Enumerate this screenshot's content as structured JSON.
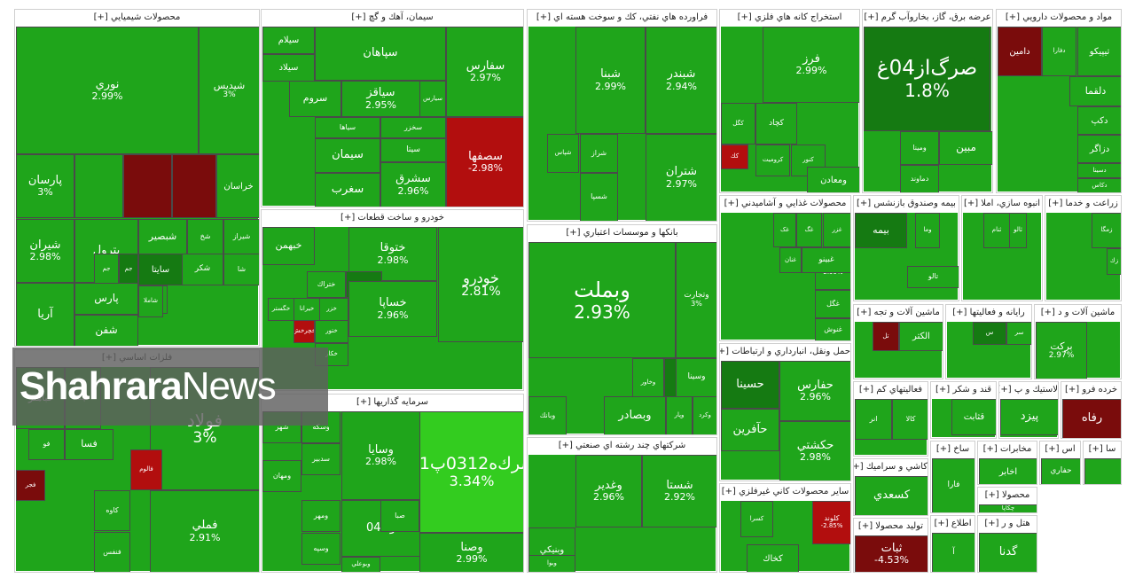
{
  "sectors": [
    {
      "title": "محصولات شيميايي [+]",
      "tiles": [
        {
          "sym": "شپديس",
          "chg": "3%",
          "c": "g"
        },
        {
          "sym": "نوري",
          "chg": "2.99%",
          "c": "g"
        },
        {
          "sym": "پارسان",
          "chg": "3%",
          "c": "g"
        },
        {
          "sym": "",
          "chg": "",
          "c": "g"
        },
        {
          "sym": "",
          "chg": "",
          "c": "dr"
        },
        {
          "sym": "",
          "chg": "",
          "c": "dr"
        },
        {
          "sym": "خراسان",
          "chg": "",
          "c": "g"
        },
        {
          "sym": "شيراز",
          "chg": "",
          "c": "g"
        },
        {
          "sym": "شبصير",
          "chg": "",
          "c": "g"
        },
        {
          "sym": "شخ",
          "chg": "",
          "c": "g"
        },
        {
          "sym": "سايتا",
          "chg": "",
          "c": "dg"
        },
        {
          "sym": "شكر",
          "chg": "",
          "c": "g"
        },
        {
          "sym": "شيران",
          "chg": "2.98%",
          "c": "g"
        },
        {
          "sym": "پترول",
          "chg": "",
          "c": "g"
        },
        {
          "sym": "شا",
          "chg": "",
          "c": "g"
        },
        {
          "sym": "قرن",
          "chg": "",
          "c": "g"
        },
        {
          "sym": "ش",
          "chg": "",
          "c": "g"
        },
        {
          "sym": "زا",
          "chg": "",
          "c": "g"
        },
        {
          "sym": "جم",
          "chg": "",
          "c": "dg"
        },
        {
          "sym": "جم",
          "chg": "",
          "c": "g"
        },
        {
          "sym": "شاملا",
          "chg": "",
          "c": "g"
        },
        {
          "sym": "پارس",
          "chg": "",
          "c": "g"
        },
        {
          "sym": "شفن",
          "chg": "",
          "c": "g"
        },
        {
          "sym": "آريا",
          "chg": "",
          "c": "g"
        }
      ]
    },
    {
      "title": "سيمان، آهك و گچ [+]",
      "tiles": [
        {
          "sym": "سفارس",
          "chg": "2.97%",
          "c": "g"
        },
        {
          "sym": "سپاهان",
          "chg": "",
          "c": "g"
        },
        {
          "sym": "سيلام",
          "chg": "",
          "c": "g"
        },
        {
          "sym": "سيلاد",
          "chg": "",
          "c": "g"
        },
        {
          "sym": "سياقز",
          "chg": "2.95%",
          "c": "g"
        },
        {
          "sym": "سيارس",
          "chg": "",
          "c": "g"
        },
        {
          "sym": "سروم",
          "chg": "",
          "c": "g"
        },
        {
          "sym": "سصفها",
          "chg": "-2.98%",
          "c": "r"
        },
        {
          "sym": "سخزر",
          "chg": "",
          "c": "g"
        },
        {
          "sym": "سياها",
          "chg": "",
          "c": "g"
        },
        {
          "sym": "سيتا",
          "chg": "",
          "c": "g"
        },
        {
          "sym": "سشرق",
          "chg": "2.96%",
          "c": "g"
        },
        {
          "sym": "سيمان",
          "chg": "",
          "c": "g"
        },
        {
          "sym": "سغرب",
          "chg": "",
          "c": "g"
        }
      ]
    },
    {
      "title": "فراورده هاي نفتي، كك و سوخت هسته اي [+]",
      "tiles": [
        {
          "sym": "شبندر",
          "chg": "2.94%",
          "c": "g"
        },
        {
          "sym": "شبنا",
          "chg": "2.99%",
          "c": "g"
        },
        {
          "sym": "شتران",
          "chg": "2.97%",
          "c": "g"
        },
        {
          "sym": "شراز",
          "chg": "",
          "c": "g"
        },
        {
          "sym": "شپاس",
          "chg": "",
          "c": "g"
        },
        {
          "sym": "شسپا",
          "chg": "",
          "c": "g"
        }
      ]
    },
    {
      "title": "استخراج كانه هاي فلزي [+]",
      "tiles": [
        {
          "sym": "فرز",
          "chg": "2.99%",
          "c": "g"
        },
        {
          "sym": "كگل",
          "chg": "",
          "c": "g"
        },
        {
          "sym": "كچاد",
          "chg": "",
          "c": "g"
        },
        {
          "sym": "كروميت",
          "chg": "",
          "c": "g"
        },
        {
          "sym": "كنور",
          "chg": "",
          "c": "g"
        },
        {
          "sym": "ومعادن",
          "chg": "",
          "c": "g"
        },
        {
          "sym": "كك",
          "chg": "",
          "c": "r"
        }
      ]
    },
    {
      "title": "عرضه برق، گاز، بخاروآب گرم [+]",
      "tiles": [
        {
          "sym": "صرگ‌از04غ",
          "chg": "1.8%",
          "c": "dg"
        },
        {
          "sym": "مبين",
          "chg": "",
          "c": "g"
        },
        {
          "sym": "ومينا",
          "chg": "",
          "c": "g"
        },
        {
          "sym": "دماوند",
          "chg": "",
          "c": "g"
        }
      ]
    },
    {
      "title": "مواد و محصولات دارويي [+]",
      "tiles": [
        {
          "sym": "دامين",
          "chg": "",
          "c": "dr"
        },
        {
          "sym": "دفارا",
          "chg": "",
          "c": "g"
        },
        {
          "sym": "تيپيكو",
          "chg": "",
          "c": "g"
        },
        {
          "sym": "دلقما",
          "chg": "",
          "c": "g"
        },
        {
          "sym": "دكپ",
          "chg": "",
          "c": "g"
        },
        {
          "sym": "دزاگر",
          "chg": "",
          "c": "g"
        },
        {
          "sym": "دسينا",
          "chg": "",
          "c": "g"
        },
        {
          "sym": "دكاس",
          "chg": "",
          "c": "g"
        }
      ]
    },
    {
      "title": "خودرو و ساخت قطعات [+]",
      "tiles": [
        {
          "sym": "خودرو",
          "chg": "2.81%",
          "c": "g"
        },
        {
          "sym": "ختوقا",
          "chg": "2.98%",
          "c": "g"
        },
        {
          "sym": "خبهمن",
          "chg": "",
          "c": "g"
        },
        {
          "sym": "خمهر",
          "chg": "",
          "c": "g"
        },
        {
          "sym": "خشرق",
          "chg": "",
          "c": "dg"
        },
        {
          "sym": "ختراك",
          "chg": "",
          "c": "g"
        },
        {
          "sym": "خساپا",
          "chg": "2.96%",
          "c": "g"
        },
        {
          "sym": "خزر",
          "chg": "",
          "c": "g"
        },
        {
          "sym": "خيرانا",
          "chg": "",
          "c": "g"
        },
        {
          "sym": "خگستر",
          "chg": "",
          "c": "g"
        },
        {
          "sym": "ختور",
          "chg": "",
          "c": "g"
        },
        {
          "sym": "خكار",
          "chg": "",
          "c": "g"
        },
        {
          "sym": "خچرخش",
          "chg": "",
          "c": "r"
        }
      ]
    },
    {
      "title": "بانكها و موسسات اعتباري [+]",
      "tiles": [
        {
          "sym": "وبملت",
          "chg": "2.93%",
          "c": "g"
        },
        {
          "sym": "وتجارت",
          "chg": "3%",
          "c": "g"
        },
        {
          "sym": "وپاسار",
          "chg": "1.94%",
          "c": "dg"
        },
        {
          "sym": "وخاور",
          "chg": "",
          "c": "g"
        },
        {
          "sym": "وسينا",
          "chg": "",
          "c": "g"
        },
        {
          "sym": "وبصادر",
          "chg": "",
          "c": "g"
        },
        {
          "sym": "وپار",
          "chg": "",
          "c": "g"
        },
        {
          "sym": "وكرد",
          "chg": "",
          "c": "g"
        },
        {
          "sym": "وبانك",
          "chg": "",
          "c": "g"
        }
      ]
    },
    {
      "title": "محصولات غذايي و آشاميدني [+]",
      "tiles": [
        {
          "sym": "غزر",
          "chg": "",
          "c": "g"
        },
        {
          "sym": "غگ",
          "chg": "",
          "c": "g"
        },
        {
          "sym": "غک",
          "chg": "",
          "c": "g"
        },
        {
          "sym": "غبيسك",
          "chg": "2.99%",
          "c": "g"
        },
        {
          "sym": "غنان",
          "chg": "",
          "c": "g"
        },
        {
          "sym": "غبينو",
          "chg": "",
          "c": "g"
        },
        {
          "sym": "غگل",
          "chg": "",
          "c": "g"
        },
        {
          "sym": "غنوش",
          "chg": "",
          "c": "g"
        }
      ]
    },
    {
      "title": "بيمه وصندوق بازنشس [+]",
      "tiles": [
        {
          "sym": "وما",
          "chg": "",
          "c": "g"
        },
        {
          "sym": "بيمه",
          "chg": "",
          "c": "dg"
        },
        {
          "sym": "تالو",
          "chg": "",
          "c": "g"
        }
      ]
    },
    {
      "title": "انبوه سازي، املا [+]",
      "tiles": [
        {
          "sym": "ثالو",
          "chg": "",
          "c": "g"
        },
        {
          "sym": "ثنام",
          "chg": "",
          "c": "g"
        }
      ]
    },
    {
      "title": "زراعت و خدما [+]",
      "tiles": [
        {
          "sym": "زمگا",
          "chg": "",
          "c": "g"
        },
        {
          "sym": "زك",
          "chg": "",
          "c": "g"
        }
      ]
    },
    {
      "title": "حمل ونقل، انبارداري و ارتباطات [+]",
      "tiles": [
        {
          "sym": "حفارس",
          "chg": "2.96%",
          "c": "g"
        },
        {
          "sym": "حسينا",
          "chg": "",
          "c": "dg"
        },
        {
          "sym": "حكشتي",
          "chg": "2.98%",
          "c": "g"
        },
        {
          "sym": "حآفرين",
          "chg": "",
          "c": "g"
        }
      ]
    },
    {
      "title": "ماشين آلات و تجه [+]",
      "tiles": [
        {
          "sym": "الكتر",
          "chg": "",
          "c": "g"
        },
        {
          "sym": "تل",
          "chg": "",
          "c": "dr"
        }
      ]
    },
    {
      "title": "رايانه و فعاليتها [+]",
      "tiles": [
        {
          "sym": "سر",
          "chg": "",
          "c": "g"
        },
        {
          "sym": "س",
          "chg": "",
          "c": "dg"
        }
      ]
    },
    {
      "title": "ماشين آلات و د [+]",
      "tiles": [
        {
          "sym": "بركت",
          "chg": "2.97%",
          "c": "g"
        }
      ]
    },
    {
      "title": "فلزات اساسي [+]",
      "tiles": [
        {
          "sym": "فولاد",
          "chg": "3%",
          "c": "g"
        },
        {
          "sym": "فملي",
          "chg": "2.91%",
          "c": "g"
        },
        {
          "sym": "فپنتا",
          "chg": "",
          "c": "g"
        },
        {
          "sym": "فباهنر",
          "chg": "",
          "c": "g"
        },
        {
          "sym": "فالوم",
          "chg": "",
          "c": "r"
        },
        {
          "sym": "فسا",
          "chg": "",
          "c": "g"
        },
        {
          "sym": "فو",
          "chg": "",
          "c": "g"
        },
        {
          "sym": "كاوه",
          "chg": "",
          "c": "g"
        },
        {
          "sym": "فنفس",
          "chg": "",
          "c": "g"
        },
        {
          "sym": "فجر",
          "chg": "",
          "c": "dr"
        }
      ]
    },
    {
      "title": "سرمايه گذاريها [+]",
      "tiles": [
        {
          "sym": "سرك‌ه0312پ01",
          "chg": "3.34%",
          "c": "lg"
        },
        {
          "sym": "وصنا",
          "chg": "2.99%",
          "c": "g"
        },
        {
          "sym": "وسايا",
          "chg": "2.98%",
          "c": "g"
        },
        {
          "sym": "وكا04",
          "chg": "",
          "c": "g"
        },
        {
          "sym": "وسكه",
          "chg": "",
          "c": "g"
        },
        {
          "sym": "سدبير",
          "chg": "",
          "c": "g"
        },
        {
          "sym": "شهر",
          "chg": "",
          "c": "g"
        },
        {
          "sym": "ومهان",
          "chg": "",
          "c": "g"
        },
        {
          "sym": "صبا",
          "chg": "",
          "c": "g"
        },
        {
          "sym": "ومهر",
          "chg": "",
          "c": "g"
        },
        {
          "sym": "وسپه",
          "chg": "",
          "c": "g"
        },
        {
          "sym": "وبوعلي",
          "chg": "",
          "c": "g"
        }
      ]
    },
    {
      "title": "شركتهاي چند رشته اي صنعتي [+]",
      "tiles": [
        {
          "sym": "شستا",
          "chg": "2.92%",
          "c": "g"
        },
        {
          "sym": "وغدير",
          "chg": "2.96%",
          "c": "g"
        },
        {
          "sym": "وبنيكي",
          "chg": "",
          "c": "g"
        },
        {
          "sym": "وبوا",
          "chg": "",
          "c": "g"
        }
      ]
    },
    {
      "title": "ساير محصولات كاني غيرفلزي [+]",
      "tiles": [
        {
          "sym": "كلوند",
          "chg": "-2.85%",
          "c": "r"
        },
        {
          "sym": "كسرا",
          "chg": "",
          "c": "g"
        },
        {
          "sym": "كخاك",
          "chg": "",
          "c": "g"
        }
      ]
    },
    {
      "title": "فعاليتهاي كم [+]",
      "tiles": [
        {
          "sym": "كالا",
          "chg": "",
          "c": "g"
        },
        {
          "sym": "انر",
          "chg": "",
          "c": "g"
        }
      ]
    },
    {
      "title": "قند و شكر [+]",
      "tiles": [
        {
          "sym": "قثابت",
          "chg": "",
          "c": "g"
        }
      ]
    },
    {
      "title": "لاستيك و پ [+]",
      "tiles": [
        {
          "sym": "پيزد",
          "chg": "",
          "c": "g"
        }
      ]
    },
    {
      "title": "خرده فرو [+]",
      "tiles": [
        {
          "sym": "رفاه",
          "chg": "",
          "c": "dr"
        }
      ]
    },
    {
      "title": "كاشي و سراميك [+]",
      "tiles": [
        {
          "sym": "كسعدي",
          "chg": "",
          "c": "g"
        }
      ]
    },
    {
      "title": "ساخ [+]",
      "tiles": [
        {
          "sym": "فارا",
          "chg": "",
          "c": "g"
        }
      ]
    },
    {
      "title": "مخابرات [+]",
      "tiles": [
        {
          "sym": "اخابر",
          "chg": "",
          "c": "g"
        }
      ]
    },
    {
      "title": "اس [+]",
      "tiles": [
        {
          "sym": "حفاري",
          "chg": "",
          "c": "g"
        }
      ]
    },
    {
      "title": "سا [+]",
      "tiles": [
        {
          "sym": "",
          "chg": "",
          "c": "g"
        }
      ]
    },
    {
      "title": "محصولا [+]",
      "tiles": [
        {
          "sym": "چكاپا",
          "chg": "",
          "c": "g"
        }
      ]
    },
    {
      "title": "اطلاع [+]",
      "tiles": [
        {
          "sym": "آ",
          "chg": "",
          "c": "g"
        }
      ]
    },
    {
      "title": "هتل و ر [+]",
      "tiles": [
        {
          "sym": "گدنا",
          "chg": "",
          "c": "g"
        }
      ]
    },
    {
      "title": "توليد محصولا [+]",
      "tiles": [
        {
          "sym": "ثبات",
          "chg": "-4.53%",
          "c": "dr"
        }
      ]
    }
  ],
  "watermark": {
    "brand_bold": "Shahrara",
    "brand_light": "News"
  }
}
